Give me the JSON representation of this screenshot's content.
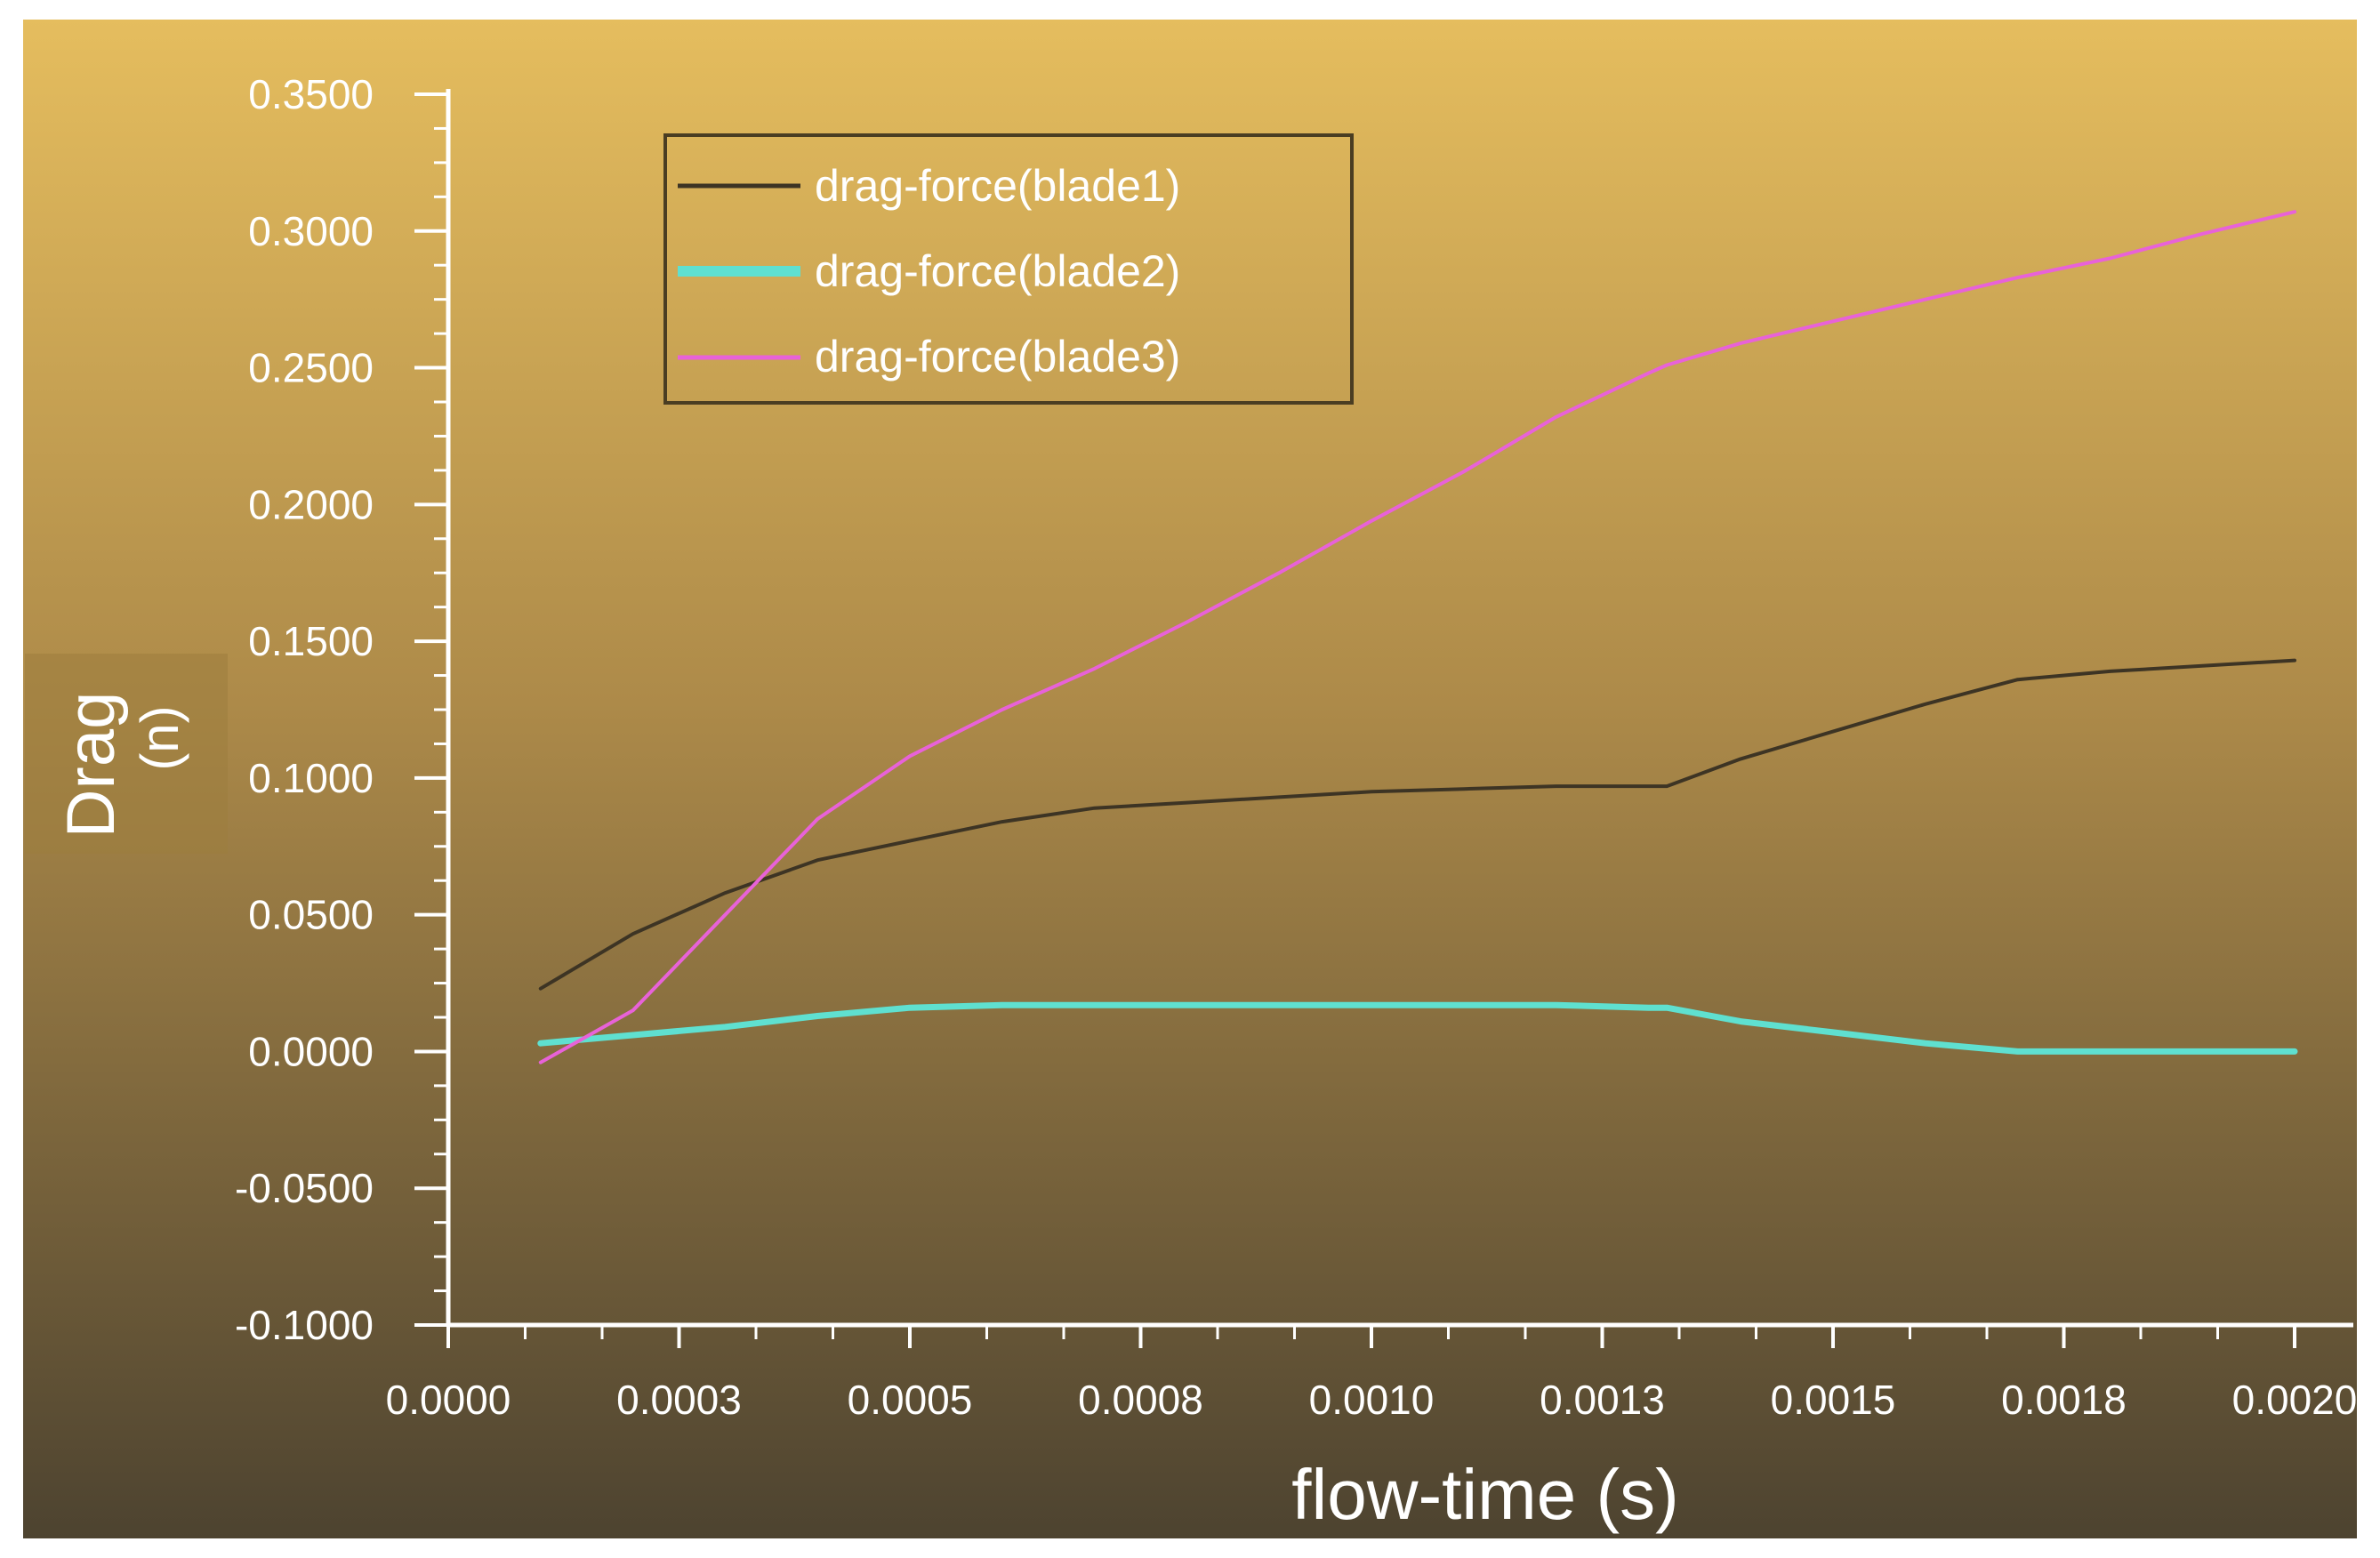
{
  "chart_data": {
    "type": "line",
    "title": "",
    "xlabel": "flow-time (s)",
    "ylabel": "Drag",
    "ylabel_unit": "(n)",
    "xlim": [
      0.0,
      0.002
    ],
    "ylim": [
      -0.1,
      0.35
    ],
    "x_ticks": [
      0.0,
      0.00025,
      0.0005,
      0.00075,
      0.001,
      0.00125,
      0.0015,
      0.00175,
      0.002
    ],
    "x_tick_labels": [
      "0.0000",
      "0.0003",
      "0.0005",
      "0.0008",
      "0.0010",
      "0.0013",
      "0.0015",
      "0.0018",
      "0.0020"
    ],
    "y_ticks": [
      -0.1,
      -0.05,
      0.0,
      0.05,
      0.1,
      0.15,
      0.2,
      0.25,
      0.3,
      0.35
    ],
    "y_tick_labels": [
      "-0.1000",
      "-0.0500",
      "0.0000",
      "0.0500",
      "0.1000",
      "0.1500",
      "0.2000",
      "0.2500",
      "0.3000",
      "0.3500"
    ],
    "grid": false,
    "legend_position": "top-left",
    "series": [
      {
        "name": "drag-force(blade1)",
        "color": "#3d3424",
        "x": [
          0.0001,
          0.0002,
          0.0003,
          0.0004,
          0.0005,
          0.0006,
          0.0007,
          0.0008,
          0.0009,
          0.001,
          0.0011,
          0.0012,
          0.0013,
          0.00132,
          0.0014,
          0.0015,
          0.0016,
          0.0017,
          0.0018,
          0.0019,
          0.002
        ],
        "y": [
          0.023,
          0.043,
          0.058,
          0.07,
          0.077,
          0.084,
          0.089,
          0.091,
          0.093,
          0.095,
          0.096,
          0.097,
          0.097,
          0.097,
          0.107,
          0.117,
          0.127,
          0.136,
          0.139,
          0.141,
          0.143
        ]
      },
      {
        "name": "drag-force(blade2)",
        "color": "#5fe0d0",
        "x": [
          0.0001,
          0.0002,
          0.0003,
          0.0004,
          0.0005,
          0.0006,
          0.0007,
          0.0008,
          0.0009,
          0.001,
          0.0011,
          0.0012,
          0.0013,
          0.00132,
          0.0014,
          0.0015,
          0.0016,
          0.0017,
          0.0018,
          0.0019,
          0.002
        ],
        "y": [
          0.003,
          0.006,
          0.009,
          0.013,
          0.016,
          0.017,
          0.017,
          0.017,
          0.017,
          0.017,
          0.017,
          0.017,
          0.016,
          0.016,
          0.011,
          0.007,
          0.003,
          0.0,
          0.0,
          0.0,
          0.0
        ]
      },
      {
        "name": "drag-force(blade3)",
        "color": "#e862d8",
        "x": [
          0.0001,
          0.0002,
          0.0003,
          0.0004,
          0.0005,
          0.0006,
          0.0007,
          0.0008,
          0.0009,
          0.001,
          0.0011,
          0.0012,
          0.0013,
          0.00132,
          0.0014,
          0.0015,
          0.0016,
          0.0017,
          0.0018,
          0.0019,
          0.002
        ],
        "y": [
          -0.004,
          0.015,
          0.05,
          0.085,
          0.108,
          0.125,
          0.14,
          0.157,
          0.175,
          0.194,
          0.212,
          0.232,
          0.248,
          0.251,
          0.259,
          0.267,
          0.275,
          0.283,
          0.29,
          0.299,
          0.307
        ]
      }
    ]
  }
}
